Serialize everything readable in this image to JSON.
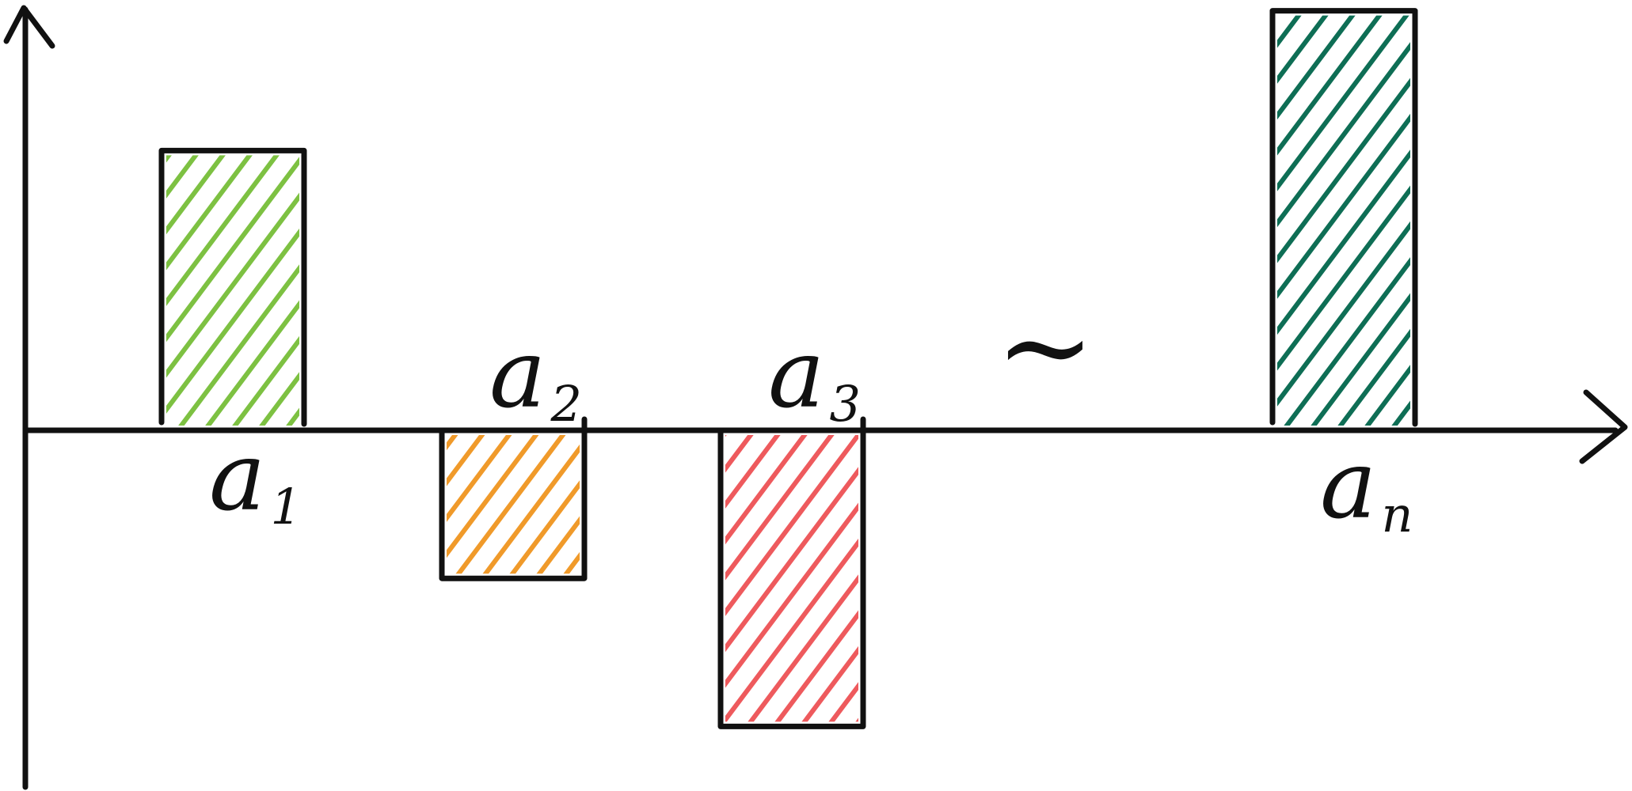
{
  "chart_data": {
    "type": "bar",
    "categories": [
      "a1",
      "a2",
      "a3",
      "...",
      "an"
    ],
    "series": [
      {
        "values": [
          3.4,
          -1.8,
          -3.6,
          null,
          5.1
        ],
        "labels": [
          {
            "base": "a",
            "sub": "1"
          },
          {
            "base": "a",
            "sub": "2"
          },
          {
            "base": "a",
            "sub": "3"
          },
          null,
          {
            "base": "a",
            "sub": "n"
          }
        ],
        "colors": [
          "#7dc142",
          "#f09a2a",
          "#ee5a5d",
          null,
          "#0e6e55"
        ]
      }
    ],
    "ellipsis": "~",
    "axes": {
      "x_arrow": true,
      "y_arrow": true
    },
    "grid": false
  }
}
